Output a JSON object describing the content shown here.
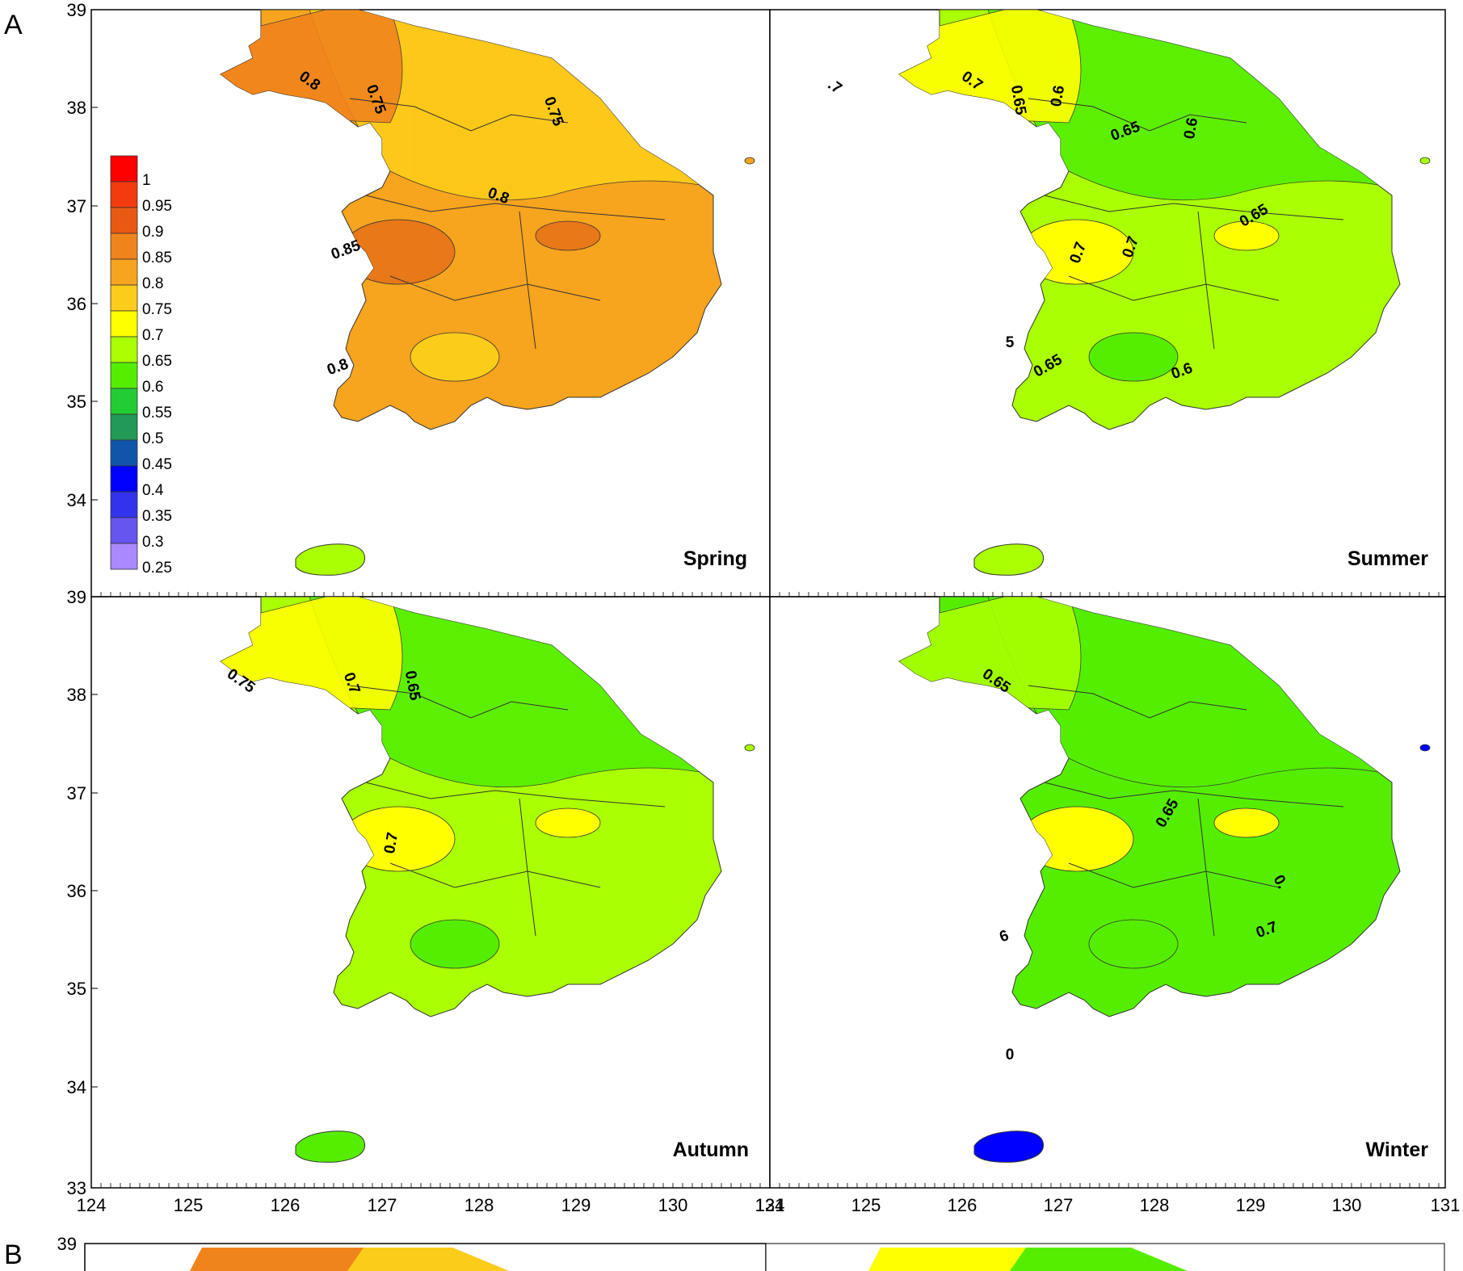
{
  "figure": {
    "panel_letters": [
      "A",
      "B"
    ],
    "lat_ticks": [
      "39",
      "38",
      "37",
      "36",
      "35",
      "34",
      "33"
    ],
    "lon_ticks_left": [
      "124",
      "125",
      "126",
      "127",
      "128",
      "129",
      "130",
      "131"
    ],
    "lon_ticks_right": [
      "124",
      "125",
      "126",
      "127",
      "128",
      "129",
      "130",
      "131"
    ],
    "lat_ticks_bottom_panel": [
      "39"
    ],
    "legend": {
      "values": [
        "1",
        "0.95",
        "0.9",
        "0.85",
        "0.8",
        "0.75",
        "0.7",
        "0.65",
        "0.6",
        "0.55",
        "0.5",
        "0.45",
        "0.4",
        "0.35",
        "0.3",
        "0.25"
      ],
      "colors": [
        "#ff0000",
        "#f23c10",
        "#e85a14",
        "#f0841c",
        "#f7a41e",
        "#fccc1a",
        "#ffff00",
        "#aaff00",
        "#55ee00",
        "#22cc33",
        "#229955",
        "#1155aa",
        "#0000ff",
        "#3333ee",
        "#6655ee",
        "#aa88ff"
      ]
    },
    "panels": [
      {
        "season": "Spring",
        "base_color": "#f7a41e",
        "north_color": "#fccc1a",
        "hot_color": "#e87818",
        "jeju_color": "#aaff00",
        "contour_labels": [
          "0.8",
          "0.75",
          "0.75",
          "0.8",
          "0.85",
          "0.8"
        ]
      },
      {
        "season": "Summer",
        "base_color": "#aaff00",
        "north_color": "#55ee00",
        "hot_color": "#ffff00",
        "jeju_color": "#aaff00",
        "contour_labels": [
          "0.7",
          "0.65",
          "0.6",
          "0.65",
          "0.6",
          "0.7",
          "0.7",
          "0.65",
          "0.65",
          "0.6",
          ".7",
          "5"
        ]
      },
      {
        "season": "Autumn",
        "base_color": "#aaff00",
        "north_color": "#55ee00",
        "hot_color": "#ffff00",
        "jeju_color": "#55ee00",
        "contour_labels": [
          "0.75",
          "0.7",
          "0.65",
          "0.7"
        ]
      },
      {
        "season": "Winter",
        "base_color": "#55ee00",
        "north_color": "#55ee00",
        "hot_color": "#ffff00",
        "jeju_color": "#0000ff",
        "contour_labels": [
          "0.65",
          "0.65",
          "0.7",
          "0.",
          "6",
          "0"
        ]
      }
    ],
    "lower_panels_visible": true
  }
}
